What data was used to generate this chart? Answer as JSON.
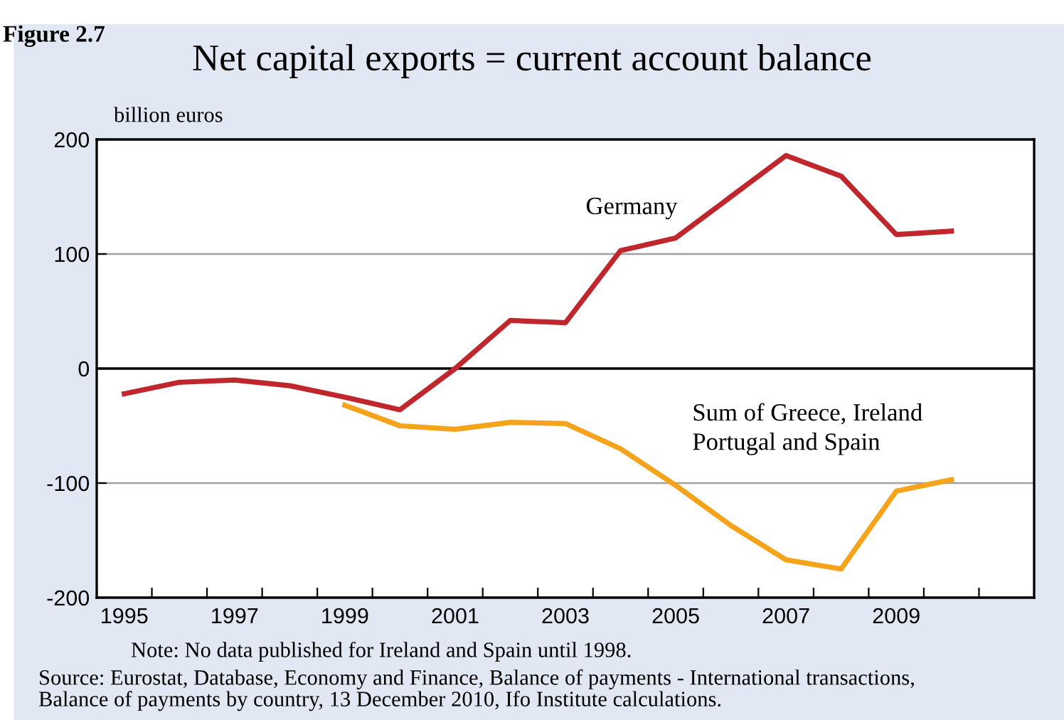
{
  "chart_data": {
    "type": "line",
    "title": "Net capital exports = current account balance",
    "ylabel": "billion euros",
    "x": [
      1995,
      1996,
      1997,
      1998,
      1999,
      2000,
      2001,
      2002,
      2003,
      2004,
      2005,
      2006,
      2007,
      2008,
      2009,
      2010
    ],
    "series": [
      {
        "name": "Germany",
        "color": "#c0272d",
        "values": [
          -22,
          -12,
          -10,
          -15,
          -25,
          -36,
          0,
          42,
          40,
          103,
          114,
          150,
          186,
          168,
          117,
          120
        ]
      },
      {
        "name": "Sum of Greece, Ireland\nPortugal and Spain",
        "color": "#f5a31a",
        "values": [
          null,
          null,
          null,
          null,
          -32,
          -50,
          -53,
          -47,
          -48,
          -70,
          -102,
          -137,
          -167,
          -175,
          -107,
          -97
        ]
      }
    ],
    "xlim": [
      1994.5,
      2011.5
    ],
    "xticks": [
      {
        "value": 1994.5,
        "label": null
      },
      {
        "value": 1995.5,
        "label": null
      },
      {
        "value": 1996.5,
        "label": null
      },
      {
        "value": 1997.5,
        "label": null
      },
      {
        "value": 1998.5,
        "label": null
      },
      {
        "value": 1999.5,
        "label": null
      },
      {
        "value": 2000.5,
        "label": null
      },
      {
        "value": 2001.5,
        "label": null
      },
      {
        "value": 2002.5,
        "label": null
      },
      {
        "value": 2003.5,
        "label": null
      },
      {
        "value": 2004.5,
        "label": null
      },
      {
        "value": 2005.5,
        "label": null
      },
      {
        "value": 2006.5,
        "label": null
      },
      {
        "value": 2007.5,
        "label": null
      },
      {
        "value": 2008.5,
        "label": null
      },
      {
        "value": 2009.5,
        "label": null
      },
      {
        "value": 2010.5,
        "label": null
      },
      1995,
      1997,
      1999,
      2001,
      2003,
      2005,
      2007,
      2009
    ],
    "ylim": [
      -200,
      200
    ],
    "yticks": [
      -200,
      -100,
      0,
      100,
      200
    ],
    "grid": "y",
    "ref_lines": [
      {
        "axis": "y",
        "value": 0,
        "color": "#000000"
      }
    ],
    "legend": false,
    "marker": "none",
    "line_style": "solid",
    "annotations": [
      "Figure 2.7",
      "Note: No data published for Ireland and Spain until 1998.",
      "Source: Eurostat, Database, Economy and Finance, Balance of payments - International transactions,\nBalance of payments by country, 13 December 2010, Ifo Institute calculations."
    ]
  }
}
